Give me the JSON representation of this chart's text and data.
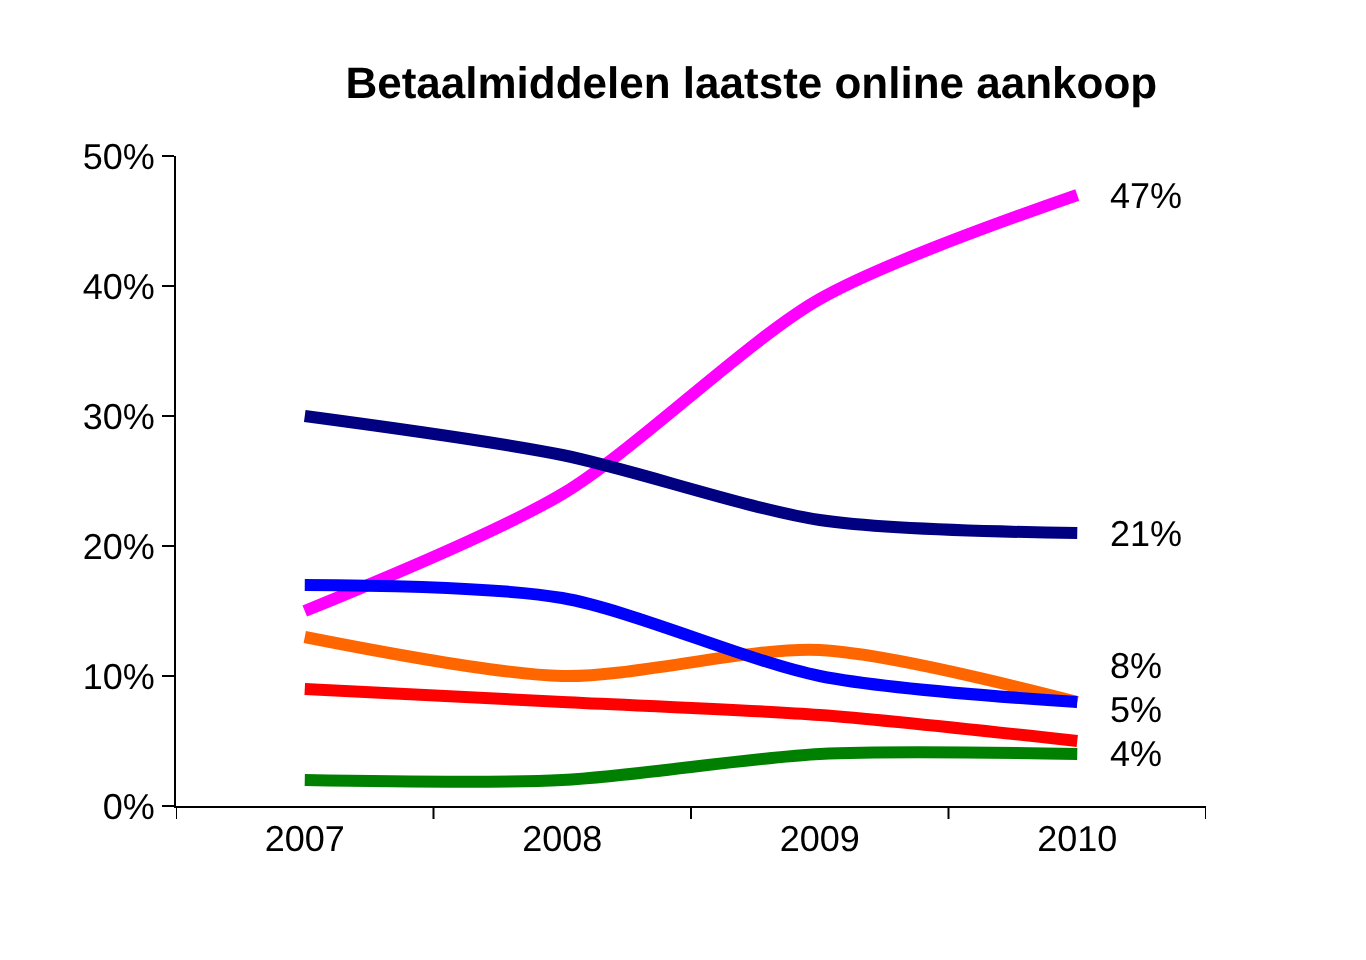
{
  "chart_data": {
    "type": "line",
    "title": "Betaalmiddelen laatste online aankoop",
    "categories": [
      "2007",
      "2008",
      "2009",
      "2010"
    ],
    "ylim": [
      0,
      50
    ],
    "yticks": [
      {
        "value": 0,
        "label": "0%"
      },
      {
        "value": 10,
        "label": "10%"
      },
      {
        "value": 20,
        "label": "20%"
      },
      {
        "value": 30,
        "label": "30%"
      },
      {
        "value": 40,
        "label": "40%"
      },
      {
        "value": 50,
        "label": "50%"
      }
    ],
    "series": [
      {
        "color": "#ff00ff",
        "values": [
          15,
          24,
          39,
          47
        ],
        "value_labels": [
          null,
          null,
          null,
          "47%"
        ]
      },
      {
        "color": "#000080",
        "values": [
          30,
          27,
          22,
          21
        ],
        "value_labels": [
          null,
          null,
          null,
          "21%"
        ]
      },
      {
        "color": "#ff6600",
        "values": [
          13,
          10,
          12,
          8
        ],
        "value_labels": [
          null,
          null,
          null,
          null
        ]
      },
      {
        "color": "#0000ff",
        "values": [
          17,
          16,
          10,
          8
        ],
        "value_labels": [
          null,
          null,
          null,
          "8%"
        ]
      },
      {
        "color": "#ff0000",
        "values": [
          9,
          8,
          7,
          5
        ],
        "value_labels": [
          null,
          null,
          null,
          "5%"
        ]
      },
      {
        "color": "#008000",
        "values": [
          2,
          2,
          4,
          4
        ],
        "value_labels": [
          null,
          null,
          null,
          "4%"
        ]
      }
    ]
  }
}
